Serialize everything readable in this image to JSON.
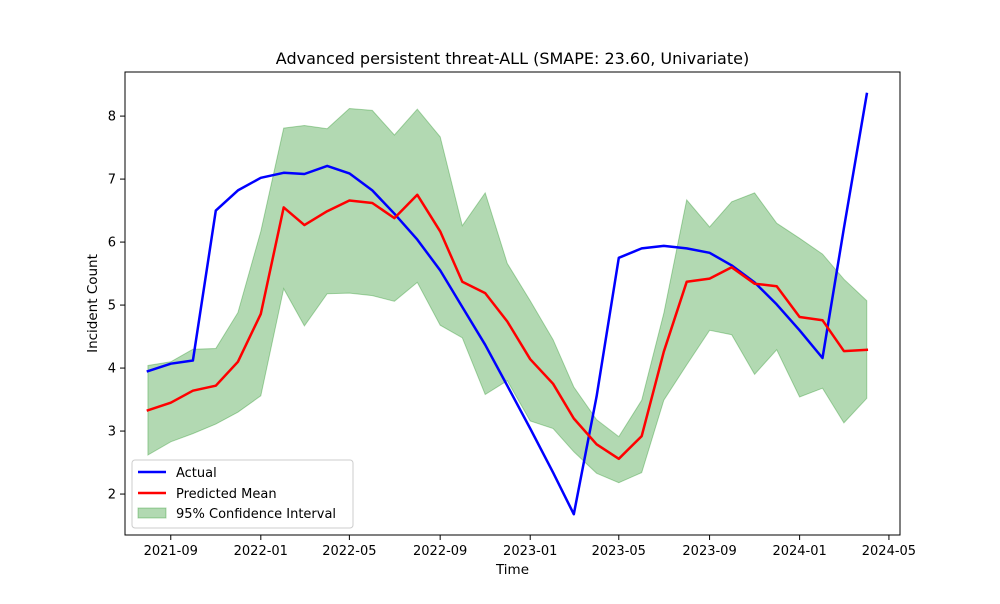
{
  "chart_data": {
    "type": "line",
    "title": "Advanced persistent threat-ALL (SMAPE: 23.60, Univariate)",
    "xlabel": "Time",
    "ylabel": "Incident Count",
    "x_tick_labels": [
      "2021-09",
      "2022-01",
      "2022-05",
      "2022-09",
      "2023-01",
      "2023-05",
      "2023-09",
      "2024-01",
      "2024-05"
    ],
    "y_ticks": [
      2,
      3,
      4,
      5,
      6,
      7,
      8
    ],
    "xlim": [
      "2021-07-01",
      "2024-05-16"
    ],
    "ylim": [
      1.35,
      8.7
    ],
    "grid": false,
    "legend_position": "lower-left",
    "x": [
      "2021-08",
      "2021-09",
      "2021-10",
      "2021-11",
      "2021-12",
      "2022-01",
      "2022-02",
      "2022-03",
      "2022-04",
      "2022-05",
      "2022-06",
      "2022-07",
      "2022-08",
      "2022-09",
      "2022-10",
      "2022-11",
      "2022-12",
      "2023-01",
      "2023-02",
      "2023-03",
      "2023-04",
      "2023-05",
      "2023-06",
      "2023-07",
      "2023-08",
      "2023-09",
      "2023-10",
      "2023-11",
      "2023-12",
      "2024-01",
      "2024-02",
      "2024-03",
      "2024-04"
    ],
    "series": [
      {
        "name": "Actual",
        "color": "#0000ff",
        "values": [
          3.95,
          4.07,
          4.12,
          6.5,
          6.82,
          7.02,
          7.1,
          7.08,
          7.21,
          7.09,
          6.82,
          6.45,
          6.04,
          5.55,
          4.97,
          4.37,
          3.72,
          3.04,
          2.34,
          1.68,
          3.55,
          5.75,
          5.9,
          5.94,
          5.9,
          5.83,
          5.63,
          5.36,
          5.01,
          4.6,
          4.16,
          6.22,
          8.35
        ]
      },
      {
        "name": "Predicted Mean",
        "color": "#ff0000",
        "values": [
          3.33,
          3.45,
          3.64,
          3.72,
          4.1,
          4.86,
          6.55,
          6.27,
          6.49,
          6.66,
          6.62,
          6.38,
          6.75,
          6.17,
          5.37,
          5.19,
          4.74,
          4.14,
          3.75,
          3.2,
          2.79,
          2.56,
          2.92,
          4.26,
          5.37,
          5.42,
          5.6,
          5.34,
          5.3,
          4.81,
          4.76,
          4.27,
          4.29
        ]
      }
    ],
    "band": {
      "name": "95% Confidence Interval",
      "color": "#008000",
      "lower": [
        2.62,
        2.83,
        2.96,
        3.11,
        3.3,
        3.56,
        5.26,
        4.67,
        5.18,
        5.19,
        5.15,
        5.06,
        5.36,
        4.68,
        4.48,
        3.58,
        3.8,
        3.16,
        3.04,
        2.67,
        2.33,
        2.18,
        2.34,
        3.49,
        4.05,
        4.6,
        4.53,
        3.9,
        4.29,
        3.54,
        3.68,
        3.13,
        3.52
      ],
      "upper": [
        4.04,
        4.1,
        4.3,
        4.31,
        4.88,
        6.17,
        7.81,
        7.85,
        7.8,
        8.12,
        8.09,
        7.7,
        8.11,
        7.67,
        6.26,
        6.78,
        5.66,
        5.07,
        4.45,
        3.7,
        3.18,
        2.91,
        3.49,
        4.87,
        6.67,
        6.24,
        6.64,
        6.78,
        6.3,
        6.06,
        5.81,
        5.41,
        5.07
      ]
    }
  }
}
